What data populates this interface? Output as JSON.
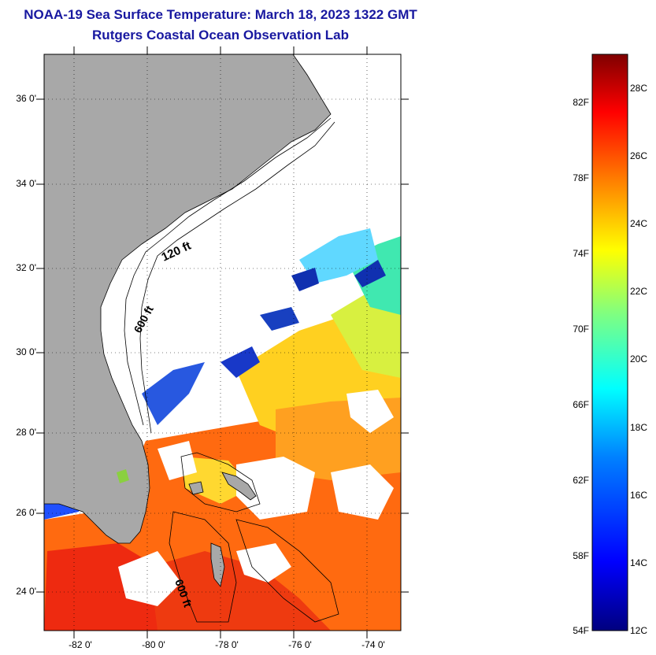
{
  "header": {
    "title": "NOAA-19 Sea Surface Temperature:  March 18, 2023 1322 GMT",
    "subtitle": "Rutgers Coastal Ocean Observation Lab"
  },
  "map": {
    "region": "US Southeast coast, Florida, Bahamas",
    "lat_ticks": [
      "36 0'",
      "34 0'",
      "32 0'",
      "30 0'",
      "28 0'",
      "26 0'",
      "24 0'"
    ],
    "lon_ticks": [
      "-82 0'",
      "-80 0'",
      "-78 0'",
      "-76 0'",
      "-74 0'"
    ],
    "lat_range": [
      23,
      37
    ],
    "lon_range": [
      -83,
      -73
    ],
    "gridlines": "dotted",
    "contour_labels": [
      "120 ft",
      "600 ft",
      "600 ft"
    ],
    "colors": {
      "land": "#a8a8a8",
      "no_data": "#ffffff",
      "contour": "#000000"
    }
  },
  "colorbar": {
    "fahrenheit_labels": [
      "82F",
      "78F",
      "74F",
      "70F",
      "66F",
      "62F",
      "58F",
      "54F"
    ],
    "celsius_labels": [
      "28C",
      "26C",
      "24C",
      "22C",
      "20C",
      "18C",
      "16C",
      "14C",
      "12C"
    ],
    "range_c": [
      12,
      29
    ],
    "colormap": [
      "#00007f",
      "#0000ff",
      "#0080ff",
      "#00ffff",
      "#80ff80",
      "#ffff00",
      "#ff8000",
      "#ff0000",
      "#7f0000"
    ]
  }
}
